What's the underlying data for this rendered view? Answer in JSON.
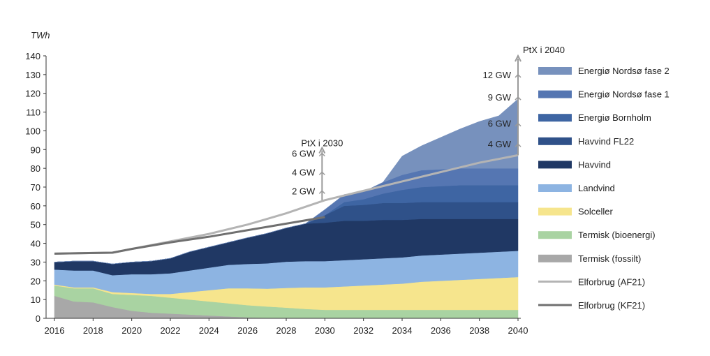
{
  "chart_data": {
    "type": "area",
    "stacked": true,
    "y_unit_label": "TWh",
    "ylim": [
      0,
      140
    ],
    "xlim": [
      2016,
      2040
    ],
    "x_ticks": [
      "2016",
      "2018",
      "2020",
      "2022",
      "2024",
      "2026",
      "2028",
      "2030",
      "2032",
      "2034",
      "2036",
      "2038",
      "2040"
    ],
    "y_ticks": [
      "0",
      "10",
      "20",
      "30",
      "40",
      "50",
      "60",
      "70",
      "80",
      "90",
      "100",
      "110",
      "120",
      "130",
      "140"
    ],
    "grid": false,
    "legend_position": "right",
    "x": [
      2016,
      2017,
      2018,
      2019,
      2020,
      2021,
      2022,
      2023,
      2024,
      2025,
      2026,
      2027,
      2028,
      2029,
      2030,
      2031,
      2032,
      2033,
      2034,
      2035,
      2036,
      2037,
      2038,
      2039,
      2040
    ],
    "series": [
      {
        "name": "Termisk (fossilt)",
        "color": "#a8a8a8",
        "values": [
          12,
          9,
          8.5,
          6,
          4,
          3,
          2.5,
          2,
          1.5,
          1,
          0.5,
          0.3,
          0.2,
          0,
          0,
          0,
          0,
          0,
          0,
          0,
          0,
          0,
          0,
          0,
          0
        ]
      },
      {
        "name": "Termisk (bioenergi)",
        "color": "#a9d3a2",
        "values": [
          5.5,
          7,
          7.5,
          7,
          8.5,
          9,
          8.5,
          8,
          7.5,
          7,
          6.5,
          6,
          5.5,
          5,
          4.5,
          4.5,
          4.5,
          4.5,
          4.5,
          4.5,
          4.5,
          4.5,
          4.5,
          4.5,
          4.5
        ]
      },
      {
        "name": "Solceller",
        "color": "#f6e58d",
        "values": [
          0.5,
          0.5,
          0.5,
          1,
          1,
          1,
          2,
          4,
          6,
          8,
          9,
          9.5,
          10.5,
          11.5,
          12,
          12.5,
          13,
          13.5,
          14,
          15,
          15.5,
          16,
          16.5,
          17,
          17.5
        ]
      },
      {
        "name": "Landvind",
        "color": "#8db4e2",
        "values": [
          8,
          9,
          9,
          9,
          10,
          10.5,
          11,
          11.5,
          12,
          12.5,
          13,
          13.5,
          14,
          14,
          14,
          14,
          14,
          14,
          14,
          14,
          14,
          14,
          14,
          14,
          14
        ]
      },
      {
        "name": "Havvind",
        "color": "#203864",
        "values": [
          4,
          5,
          5,
          6,
          6.5,
          7,
          8,
          10,
          11,
          12,
          14,
          16,
          18,
          20,
          20.5,
          21,
          20.5,
          20.5,
          20,
          19.5,
          19,
          18.5,
          18,
          17.5,
          17
        ]
      },
      {
        "name": "Havvind FL22",
        "color": "#2f5189",
        "values": [
          0,
          0,
          0,
          0,
          0,
          0,
          0,
          0,
          0,
          0,
          0,
          0,
          0,
          0,
          4,
          8,
          8.5,
          9,
          9,
          9,
          9,
          9,
          9,
          9,
          9
        ]
      },
      {
        "name": "Energiø Bornholm",
        "color": "#3e65a3",
        "values": [
          0,
          0,
          0,
          0,
          0,
          0,
          0,
          0,
          0,
          0,
          0,
          0,
          0,
          0,
          0,
          2,
          3,
          5,
          7,
          8,
          8.5,
          9,
          9,
          9,
          9
        ]
      },
      {
        "name": "Energiø Nordsø fase 1",
        "color": "#5576b2",
        "values": [
          0,
          0,
          0,
          0,
          0,
          0,
          0,
          0,
          0,
          0,
          0,
          0,
          0,
          0,
          3,
          4,
          4,
          6,
          8,
          9,
          9,
          9,
          9,
          9,
          9
        ]
      },
      {
        "name": "Energiø Nordsø fase 2",
        "color": "#7791bd",
        "values": [
          0,
          0,
          0,
          0,
          0,
          0,
          0,
          0,
          0,
          0,
          0,
          0,
          0,
          0,
          0,
          0,
          0,
          0,
          10,
          13,
          17,
          21,
          25,
          28,
          37
        ]
      }
    ],
    "lines": [
      {
        "name": "Elforbrug (AF21)",
        "color": "#b4b4b4",
        "x": [
          2016,
          2019,
          2020,
          2022,
          2024,
          2026,
          2028,
          2030,
          2032,
          2034,
          2036,
          2038,
          2040
        ],
        "values": [
          34.5,
          35,
          37,
          41,
          45,
          50,
          56,
          63,
          68,
          73,
          78,
          83,
          87
        ]
      },
      {
        "name": "Elforbrug (KF21)",
        "color": "#707070",
        "x": [
          2016,
          2019,
          2020,
          2022,
          2024,
          2026,
          2028,
          2030
        ],
        "values": [
          34.5,
          35,
          37,
          40.5,
          43.5,
          47,
          50.5,
          54
        ]
      }
    ],
    "annotations": [
      {
        "title": "PtX i 2030",
        "x": 2030,
        "labels": [
          "6 GW",
          "4 GW",
          "2 GW"
        ],
        "values": [
          88,
          78,
          68
        ],
        "base": 63,
        "top": 91
      },
      {
        "title": "PtX i 2040",
        "x": 2040,
        "labels": [
          "12 GW",
          "9 GW",
          "6 GW",
          "4 GW"
        ],
        "values": [
          130,
          118,
          104,
          93
        ],
        "base": 87,
        "top": 140
      }
    ]
  }
}
